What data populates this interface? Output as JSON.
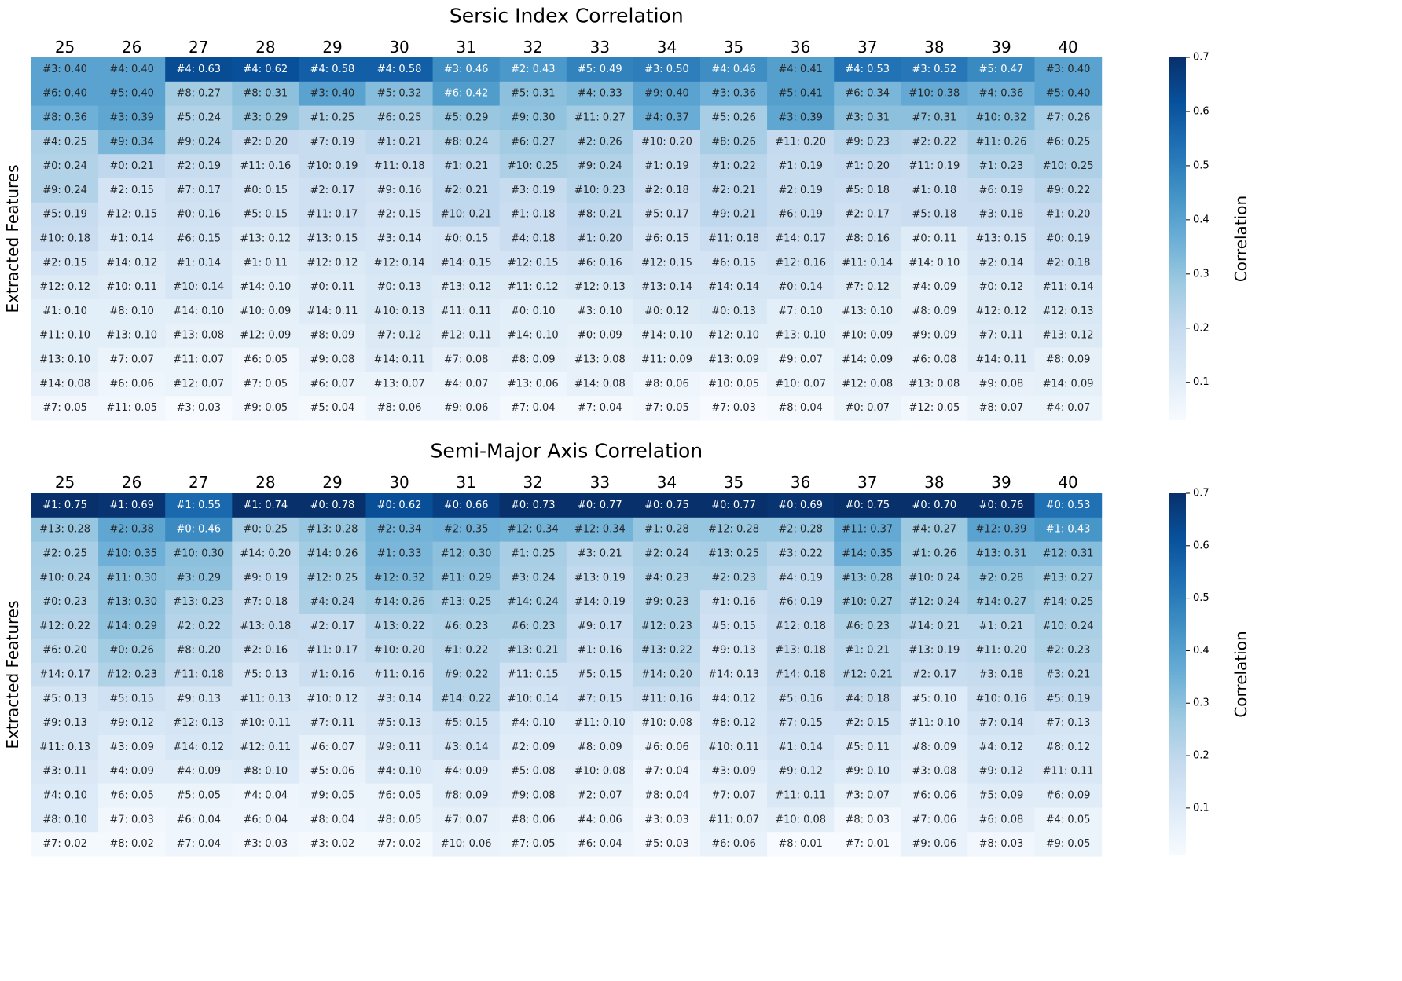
{
  "chart_data": [
    {
      "type": "heatmap",
      "title": "Sersic Index Correlation",
      "ylabel": "Extracted Features",
      "colorbar_label": "Correlation",
      "colorbar_ticks": [
        "0.1",
        "0.2",
        "0.3",
        "0.4",
        "0.5",
        "0.6",
        "0.7"
      ],
      "color_range": [
        0.03,
        0.7
      ],
      "colormap": "Blues",
      "columns": [
        "25",
        "26",
        "27",
        "28",
        "29",
        "30",
        "31",
        "32",
        "33",
        "34",
        "35",
        "36",
        "37",
        "38",
        "39",
        "40"
      ],
      "cells": [
        [
          "#3: 0.40",
          "#6: 0.40",
          "#8: 0.36",
          "#4: 0.25",
          "#0: 0.24",
          "#9: 0.24",
          "#5: 0.19",
          "#10: 0.18",
          "#2: 0.15",
          "#12: 0.12",
          "#1: 0.10",
          "#11: 0.10",
          "#13: 0.10",
          "#14: 0.08",
          "#7: 0.05"
        ],
        [
          "#4: 0.40",
          "#5: 0.40",
          "#3: 0.39",
          "#9: 0.34",
          "#0: 0.21",
          "#2: 0.15",
          "#12: 0.15",
          "#1: 0.14",
          "#14: 0.12",
          "#10: 0.11",
          "#8: 0.10",
          "#13: 0.10",
          "#7: 0.07",
          "#6: 0.06",
          "#11: 0.05"
        ],
        [
          "#4: 0.63",
          "#8: 0.27",
          "#5: 0.24",
          "#9: 0.24",
          "#2: 0.19",
          "#7: 0.17",
          "#0: 0.16",
          "#6: 0.15",
          "#1: 0.14",
          "#10: 0.14",
          "#14: 0.10",
          "#13: 0.08",
          "#11: 0.07",
          "#12: 0.07",
          "#3: 0.03"
        ],
        [
          "#4: 0.62",
          "#8: 0.31",
          "#3: 0.29",
          "#2: 0.20",
          "#11: 0.16",
          "#0: 0.15",
          "#5: 0.15",
          "#13: 0.12",
          "#1: 0.11",
          "#14: 0.10",
          "#10: 0.09",
          "#12: 0.09",
          "#6: 0.05",
          "#7: 0.05",
          "#9: 0.05"
        ],
        [
          "#4: 0.58",
          "#3: 0.40",
          "#1: 0.25",
          "#7: 0.19",
          "#10: 0.19",
          "#2: 0.17",
          "#11: 0.17",
          "#13: 0.15",
          "#12: 0.12",
          "#0: 0.11",
          "#14: 0.11",
          "#8: 0.09",
          "#9: 0.08",
          "#6: 0.07",
          "#5: 0.04"
        ],
        [
          "#4: 0.58",
          "#5: 0.32",
          "#6: 0.25",
          "#1: 0.21",
          "#11: 0.18",
          "#9: 0.16",
          "#2: 0.15",
          "#3: 0.14",
          "#12: 0.14",
          "#0: 0.13",
          "#10: 0.13",
          "#7: 0.12",
          "#14: 0.11",
          "#13: 0.07",
          "#8: 0.06"
        ],
        [
          "#3: 0.46",
          "#6: 0.42",
          "#5: 0.29",
          "#8: 0.24",
          "#1: 0.21",
          "#2: 0.21",
          "#10: 0.21",
          "#0: 0.15",
          "#14: 0.15",
          "#13: 0.12",
          "#11: 0.11",
          "#12: 0.11",
          "#7: 0.08",
          "#4: 0.07",
          "#9: 0.06"
        ],
        [
          "#2: 0.43",
          "#5: 0.31",
          "#9: 0.30",
          "#6: 0.27",
          "#10: 0.25",
          "#3: 0.19",
          "#1: 0.18",
          "#4: 0.18",
          "#12: 0.15",
          "#11: 0.12",
          "#0: 0.10",
          "#14: 0.10",
          "#8: 0.09",
          "#13: 0.06",
          "#7: 0.04"
        ],
        [
          "#5: 0.49",
          "#4: 0.33",
          "#11: 0.27",
          "#2: 0.26",
          "#9: 0.24",
          "#10: 0.23",
          "#8: 0.21",
          "#1: 0.20",
          "#6: 0.16",
          "#12: 0.13",
          "#3: 0.10",
          "#0: 0.09",
          "#13: 0.08",
          "#14: 0.08",
          "#7: 0.04"
        ],
        [
          "#3: 0.50",
          "#9: 0.40",
          "#4: 0.37",
          "#10: 0.20",
          "#1: 0.19",
          "#2: 0.18",
          "#5: 0.17",
          "#6: 0.15",
          "#12: 0.15",
          "#13: 0.14",
          "#0: 0.12",
          "#14: 0.10",
          "#11: 0.09",
          "#8: 0.06",
          "#7: 0.05"
        ],
        [
          "#4: 0.46",
          "#3: 0.36",
          "#5: 0.26",
          "#8: 0.26",
          "#1: 0.22",
          "#2: 0.21",
          "#9: 0.21",
          "#11: 0.18",
          "#6: 0.15",
          "#14: 0.14",
          "#0: 0.13",
          "#12: 0.10",
          "#13: 0.09",
          "#10: 0.05",
          "#7: 0.03"
        ],
        [
          "#4: 0.41",
          "#5: 0.41",
          "#3: 0.39",
          "#11: 0.20",
          "#1: 0.19",
          "#2: 0.19",
          "#6: 0.19",
          "#14: 0.17",
          "#12: 0.16",
          "#0: 0.14",
          "#7: 0.10",
          "#13: 0.10",
          "#9: 0.07",
          "#10: 0.07",
          "#8: 0.04"
        ],
        [
          "#4: 0.53",
          "#6: 0.34",
          "#3: 0.31",
          "#9: 0.23",
          "#1: 0.20",
          "#5: 0.18",
          "#2: 0.17",
          "#8: 0.16",
          "#11: 0.14",
          "#7: 0.12",
          "#13: 0.10",
          "#10: 0.09",
          "#14: 0.09",
          "#12: 0.08",
          "#0: 0.07"
        ],
        [
          "#3: 0.52",
          "#10: 0.38",
          "#7: 0.31",
          "#2: 0.22",
          "#11: 0.19",
          "#1: 0.18",
          "#5: 0.18",
          "#0: 0.11",
          "#14: 0.10",
          "#4: 0.09",
          "#8: 0.09",
          "#9: 0.09",
          "#6: 0.08",
          "#13: 0.08",
          "#12: 0.05"
        ],
        [
          "#5: 0.47",
          "#4: 0.36",
          "#10: 0.32",
          "#11: 0.26",
          "#1: 0.23",
          "#6: 0.19",
          "#3: 0.18",
          "#13: 0.15",
          "#2: 0.14",
          "#0: 0.12",
          "#12: 0.12",
          "#7: 0.11",
          "#14: 0.11",
          "#9: 0.08",
          "#8: 0.07"
        ],
        [
          "#3: 0.40",
          "#5: 0.40",
          "#7: 0.26",
          "#6: 0.25",
          "#10: 0.25",
          "#9: 0.22",
          "#1: 0.20",
          "#0: 0.19",
          "#2: 0.18",
          "#11: 0.14",
          "#12: 0.13",
          "#13: 0.12",
          "#8: 0.09",
          "#14: 0.09",
          "#4: 0.07"
        ]
      ]
    },
    {
      "type": "heatmap",
      "title": "Semi-Major Axis Correlation",
      "ylabel": "Extracted Features",
      "colorbar_label": "Correlation",
      "colorbar_ticks": [
        "0.1",
        "0.2",
        "0.3",
        "0.4",
        "0.5",
        "0.6",
        "0.7"
      ],
      "color_range": [
        0.01,
        0.7
      ],
      "colormap": "Blues",
      "columns": [
        "25",
        "26",
        "27",
        "28",
        "29",
        "30",
        "31",
        "32",
        "33",
        "34",
        "35",
        "36",
        "37",
        "38",
        "39",
        "40"
      ],
      "cells": [
        [
          "#1: 0.75",
          "#13: 0.28",
          "#2: 0.25",
          "#10: 0.24",
          "#0: 0.23",
          "#12: 0.22",
          "#6: 0.20",
          "#14: 0.17",
          "#5: 0.13",
          "#9: 0.13",
          "#11: 0.13",
          "#3: 0.11",
          "#4: 0.10",
          "#8: 0.10",
          "#7: 0.02"
        ],
        [
          "#1: 0.69",
          "#2: 0.38",
          "#10: 0.35",
          "#11: 0.30",
          "#13: 0.30",
          "#14: 0.29",
          "#0: 0.26",
          "#12: 0.23",
          "#5: 0.15",
          "#9: 0.12",
          "#3: 0.09",
          "#4: 0.09",
          "#6: 0.05",
          "#7: 0.03",
          "#8: 0.02"
        ],
        [
          "#1: 0.55",
          "#0: 0.46",
          "#10: 0.30",
          "#3: 0.29",
          "#13: 0.23",
          "#2: 0.22",
          "#8: 0.20",
          "#11: 0.18",
          "#9: 0.13",
          "#12: 0.13",
          "#14: 0.12",
          "#4: 0.09",
          "#5: 0.05",
          "#6: 0.04",
          "#7: 0.04"
        ],
        [
          "#1: 0.74",
          "#0: 0.25",
          "#14: 0.20",
          "#9: 0.19",
          "#7: 0.18",
          "#13: 0.18",
          "#2: 0.16",
          "#5: 0.13",
          "#11: 0.13",
          "#10: 0.11",
          "#12: 0.11",
          "#8: 0.10",
          "#4: 0.04",
          "#6: 0.04",
          "#3: 0.03"
        ],
        [
          "#0: 0.78",
          "#13: 0.28",
          "#14: 0.26",
          "#12: 0.25",
          "#4: 0.24",
          "#2: 0.17",
          "#11: 0.17",
          "#1: 0.16",
          "#10: 0.12",
          "#7: 0.11",
          "#6: 0.07",
          "#5: 0.06",
          "#9: 0.05",
          "#8: 0.04",
          "#3: 0.02"
        ],
        [
          "#0: 0.62",
          "#2: 0.34",
          "#1: 0.33",
          "#12: 0.32",
          "#14: 0.26",
          "#13: 0.22",
          "#10: 0.20",
          "#11: 0.16",
          "#3: 0.14",
          "#5: 0.13",
          "#9: 0.11",
          "#4: 0.10",
          "#6: 0.05",
          "#8: 0.05",
          "#7: 0.02"
        ],
        [
          "#0: 0.66",
          "#2: 0.35",
          "#12: 0.30",
          "#11: 0.29",
          "#13: 0.25",
          "#6: 0.23",
          "#1: 0.22",
          "#9: 0.22",
          "#14: 0.22",
          "#5: 0.15",
          "#3: 0.14",
          "#4: 0.09",
          "#8: 0.09",
          "#7: 0.07",
          "#10: 0.06"
        ],
        [
          "#0: 0.73",
          "#12: 0.34",
          "#1: 0.25",
          "#3: 0.24",
          "#14: 0.24",
          "#6: 0.23",
          "#13: 0.21",
          "#11: 0.15",
          "#10: 0.14",
          "#4: 0.10",
          "#2: 0.09",
          "#5: 0.08",
          "#9: 0.08",
          "#8: 0.06",
          "#7: 0.05"
        ],
        [
          "#0: 0.77",
          "#12: 0.34",
          "#3: 0.21",
          "#13: 0.19",
          "#14: 0.19",
          "#9: 0.17",
          "#1: 0.16",
          "#5: 0.15",
          "#7: 0.15",
          "#11: 0.10",
          "#8: 0.09",
          "#10: 0.08",
          "#2: 0.07",
          "#4: 0.06",
          "#6: 0.04"
        ],
        [
          "#0: 0.75",
          "#1: 0.28",
          "#2: 0.24",
          "#4: 0.23",
          "#9: 0.23",
          "#12: 0.23",
          "#13: 0.22",
          "#14: 0.20",
          "#11: 0.16",
          "#10: 0.08",
          "#6: 0.06",
          "#7: 0.04",
          "#8: 0.04",
          "#3: 0.03",
          "#5: 0.03"
        ],
        [
          "#0: 0.77",
          "#12: 0.28",
          "#13: 0.25",
          "#2: 0.23",
          "#1: 0.16",
          "#5: 0.15",
          "#9: 0.13",
          "#14: 0.13",
          "#4: 0.12",
          "#8: 0.12",
          "#10: 0.11",
          "#3: 0.09",
          "#7: 0.07",
          "#11: 0.07",
          "#6: 0.06"
        ],
        [
          "#0: 0.69",
          "#2: 0.28",
          "#3: 0.22",
          "#4: 0.19",
          "#6: 0.19",
          "#12: 0.18",
          "#13: 0.18",
          "#14: 0.18",
          "#5: 0.16",
          "#7: 0.15",
          "#1: 0.14",
          "#9: 0.12",
          "#11: 0.11",
          "#10: 0.08",
          "#8: 0.01"
        ],
        [
          "#0: 0.75",
          "#11: 0.37",
          "#14: 0.35",
          "#13: 0.28",
          "#10: 0.27",
          "#6: 0.23",
          "#1: 0.21",
          "#12: 0.21",
          "#4: 0.18",
          "#2: 0.15",
          "#5: 0.11",
          "#9: 0.10",
          "#3: 0.07",
          "#8: 0.03",
          "#7: 0.01"
        ],
        [
          "#0: 0.70",
          "#4: 0.27",
          "#1: 0.26",
          "#10: 0.24",
          "#12: 0.24",
          "#14: 0.21",
          "#13: 0.19",
          "#2: 0.17",
          "#5: 0.10",
          "#11: 0.10",
          "#8: 0.09",
          "#3: 0.08",
          "#6: 0.06",
          "#7: 0.06",
          "#9: 0.06"
        ],
        [
          "#0: 0.76",
          "#12: 0.39",
          "#13: 0.31",
          "#2: 0.28",
          "#14: 0.27",
          "#1: 0.21",
          "#11: 0.20",
          "#3: 0.18",
          "#10: 0.16",
          "#7: 0.14",
          "#4: 0.12",
          "#9: 0.12",
          "#5: 0.09",
          "#6: 0.08",
          "#8: 0.03"
        ],
        [
          "#0: 0.53",
          "#1: 0.43",
          "#12: 0.31",
          "#13: 0.27",
          "#14: 0.25",
          "#10: 0.24",
          "#2: 0.23",
          "#3: 0.21",
          "#5: 0.19",
          "#7: 0.13",
          "#8: 0.12",
          "#11: 0.11",
          "#6: 0.09",
          "#4: 0.05",
          "#9: 0.05"
        ]
      ]
    }
  ]
}
